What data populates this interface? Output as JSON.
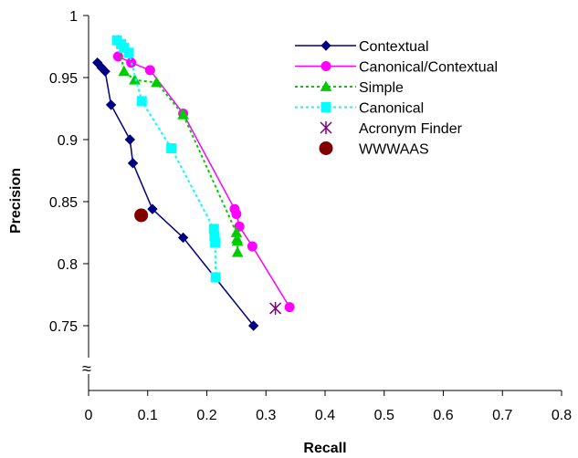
{
  "chart_data": {
    "type": "line",
    "title": "",
    "xlabel": "Recall",
    "ylabel": "Precision",
    "xlim": [
      0,
      0.8
    ],
    "ylim": [
      0.72,
      1.0
    ],
    "xticks": [
      "0",
      "0.1",
      "0.2",
      "0.3",
      "0.4",
      "0.5",
      "0.6",
      "0.7",
      "0.8"
    ],
    "yticks": [
      "0.75",
      "0.8",
      "0.85",
      "0.9",
      "0.95",
      "1"
    ],
    "axis_break_symbol": "≈",
    "grid": false,
    "legend_position": "top-right",
    "series": [
      {
        "name": "Contextual",
        "color": "#000080",
        "line": "solid",
        "marker": "diamond",
        "x": [
          0.015,
          0.022,
          0.028,
          0.038,
          0.07,
          0.075,
          0.108,
          0.16,
          0.279
        ],
        "y": [
          0.962,
          0.958,
          0.955,
          0.928,
          0.9,
          0.881,
          0.844,
          0.821,
          0.75
        ]
      },
      {
        "name": "Canonical/Contextual",
        "color": "#FF00FF",
        "line": "solid",
        "marker": "circle",
        "x": [
          0.05,
          0.072,
          0.104,
          0.16,
          0.247,
          0.25,
          0.255,
          0.277,
          0.34
        ],
        "y": [
          0.967,
          0.962,
          0.956,
          0.921,
          0.844,
          0.84,
          0.83,
          0.814,
          0.765
        ]
      },
      {
        "name": "Simple",
        "color": "#00CC00",
        "line": "dotted",
        "marker": "triangle",
        "x": [
          0.05,
          0.06,
          0.078,
          0.115,
          0.16,
          0.25,
          0.251,
          0.252,
          0.252
        ],
        "y": [
          0.98,
          0.955,
          0.948,
          0.946,
          0.92,
          0.825,
          0.82,
          0.818,
          0.809
        ]
      },
      {
        "name": "Canonical",
        "color": "#00FFFF",
        "line": "dotted",
        "marker": "square",
        "x": [
          0.048,
          0.055,
          0.06,
          0.068,
          0.09,
          0.14,
          0.212,
          0.213,
          0.214,
          0.215
        ],
        "y": [
          0.98,
          0.977,
          0.974,
          0.97,
          0.931,
          0.893,
          0.828,
          0.822,
          0.817,
          0.789
        ]
      },
      {
        "name": "Acronym Finder",
        "color": "#800080",
        "line": "none",
        "marker": "asterisk",
        "x": [
          0.316
        ],
        "y": [
          0.764
        ]
      },
      {
        "name": "WWWAAS",
        "color": "#800000",
        "line": "none",
        "marker": "big-circle",
        "x": [
          0.089
        ],
        "y": [
          0.839
        ]
      }
    ]
  }
}
